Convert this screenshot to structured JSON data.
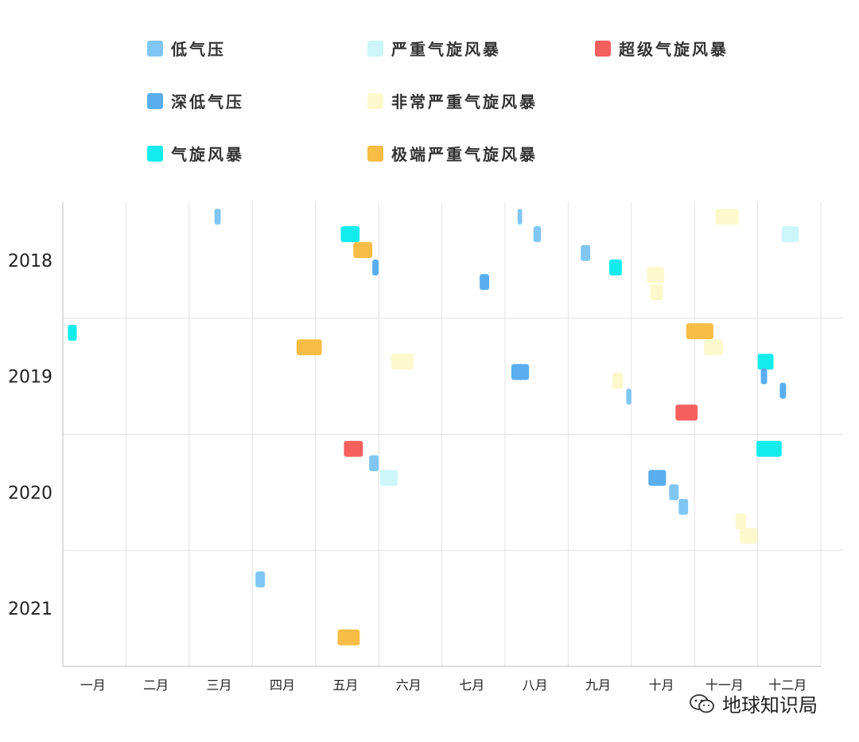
{
  "colors": {
    "low_pressure": "#7fc6f3",
    "deep_low_pressure": "#5aaef0",
    "cyclonic_storm": "#12ecec",
    "severe_cyclonic_storm": "#ccf6fa",
    "very_severe_cyclonic_storm": "#fdf9cc",
    "extremely_severe_cyclonic_storm": "#f7bd45",
    "super_cyclonic_storm": "#f5605f",
    "grid": "#e2e2e2",
    "axis": "#bdbdbd"
  },
  "watermark": {
    "icon": "wechat-icon",
    "text": "地球知识局"
  },
  "chart_data": {
    "type": "scatter",
    "title": "",
    "legend": {
      "placement": "top",
      "entries": [
        {
          "key": "low_pressure",
          "label": "低气压"
        },
        {
          "key": "severe_cyclonic_storm",
          "label": "严重气旋风暴"
        },
        {
          "key": "super_cyclonic_storm",
          "label": "超级气旋风暴"
        },
        {
          "key": "deep_low_pressure",
          "label": "深低气压"
        },
        {
          "key": "very_severe_cyclonic_storm",
          "label": "非常严重气旋风暴"
        },
        {
          "key": "cyclonic_storm",
          "label": "气旋风暴"
        },
        {
          "key": "extremely_severe_cyclonic_storm",
          "label": "极端严重气旋风暴"
        }
      ]
    },
    "x_axis": {
      "unit": "month",
      "range": [
        1,
        13
      ],
      "labels": [
        "一月",
        "二月",
        "三月",
        "四月",
        "五月",
        "六月",
        "七月",
        "八月",
        "九月",
        "十月",
        "十一月",
        "十二月"
      ]
    },
    "y_axis": {
      "categories": [
        "2018",
        "2019",
        "2020",
        "2021"
      ]
    },
    "grid": true,
    "storms": [
      {
        "year": "2018",
        "start": 3.4,
        "end": 3.5,
        "row": 1.0,
        "category": "low_pressure"
      },
      {
        "year": "2018",
        "start": 5.4,
        "end": 5.7,
        "row": 2.2,
        "category": "cyclonic_storm"
      },
      {
        "year": "2018",
        "start": 5.6,
        "end": 5.9,
        "row": 3.3,
        "category": "extremely_severe_cyclonic_storm"
      },
      {
        "year": "2018",
        "start": 5.9,
        "end": 6.0,
        "row": 4.5,
        "category": "deep_low_pressure"
      },
      {
        "year": "2018",
        "start": 7.6,
        "end": 7.75,
        "row": 5.5,
        "category": "deep_low_pressure"
      },
      {
        "year": "2018",
        "start": 8.2,
        "end": 8.27,
        "row": 1.0,
        "category": "low_pressure"
      },
      {
        "year": "2018",
        "start": 8.45,
        "end": 8.57,
        "row": 2.2,
        "category": "low_pressure"
      },
      {
        "year": "2018",
        "start": 9.2,
        "end": 9.35,
        "row": 3.5,
        "category": "low_pressure"
      },
      {
        "year": "2018",
        "start": 9.65,
        "end": 9.85,
        "row": 4.5,
        "category": "cyclonic_storm"
      },
      {
        "year": "2018",
        "start": 10.25,
        "end": 10.52,
        "row": 5.0,
        "category": "very_severe_cyclonic_storm"
      },
      {
        "year": "2018",
        "start": 10.3,
        "end": 10.5,
        "row": 6.2,
        "category": "very_severe_cyclonic_storm"
      },
      {
        "year": "2018",
        "start": 11.33,
        "end": 11.7,
        "row": 1.0,
        "category": "very_severe_cyclonic_storm"
      },
      {
        "year": "2018",
        "start": 12.38,
        "end": 12.65,
        "row": 2.2,
        "category": "severe_cyclonic_storm"
      },
      {
        "year": "2019",
        "start": 1.08,
        "end": 1.22,
        "row": 1.0,
        "category": "cyclonic_storm"
      },
      {
        "year": "2019",
        "start": 4.7,
        "end": 5.1,
        "row": 2.0,
        "category": "extremely_severe_cyclonic_storm"
      },
      {
        "year": "2019",
        "start": 6.2,
        "end": 6.55,
        "row": 3.0,
        "category": "very_severe_cyclonic_storm"
      },
      {
        "year": "2019",
        "start": 8.1,
        "end": 8.38,
        "row": 3.7,
        "category": "deep_low_pressure"
      },
      {
        "year": "2019",
        "start": 9.7,
        "end": 9.87,
        "row": 4.3,
        "category": "very_severe_cyclonic_storm"
      },
      {
        "year": "2019",
        "start": 9.92,
        "end": 10.0,
        "row": 5.4,
        "category": "low_pressure"
      },
      {
        "year": "2019",
        "start": 10.7,
        "end": 11.05,
        "row": 6.5,
        "category": "super_cyclonic_storm"
      },
      {
        "year": "2019",
        "start": 10.87,
        "end": 11.3,
        "row": 0.9,
        "category": "extremely_severe_cyclonic_storm"
      },
      {
        "year": "2019",
        "start": 11.15,
        "end": 11.45,
        "row": 2.0,
        "category": "very_severe_cyclonic_storm"
      },
      {
        "year": "2019",
        "start": 12.0,
        "end": 12.25,
        "row": 3.0,
        "category": "cyclonic_storm"
      },
      {
        "year": "2019",
        "start": 12.05,
        "end": 12.15,
        "row": 4.0,
        "category": "deep_low_pressure"
      },
      {
        "year": "2019",
        "start": 12.35,
        "end": 12.45,
        "row": 5.0,
        "category": "deep_low_pressure"
      },
      {
        "year": "2020",
        "start": 5.45,
        "end": 5.75,
        "row": 1.0,
        "category": "super_cyclonic_storm"
      },
      {
        "year": "2020",
        "start": 5.85,
        "end": 6.0,
        "row": 2.0,
        "category": "low_pressure"
      },
      {
        "year": "2020",
        "start": 6.02,
        "end": 6.3,
        "row": 3.0,
        "category": "severe_cyclonic_storm"
      },
      {
        "year": "2020",
        "start": 10.27,
        "end": 10.55,
        "row": 3.0,
        "category": "deep_low_pressure"
      },
      {
        "year": "2020",
        "start": 10.6,
        "end": 10.75,
        "row": 4.0,
        "category": "low_pressure"
      },
      {
        "year": "2020",
        "start": 10.75,
        "end": 10.9,
        "row": 5.0,
        "category": "low_pressure"
      },
      {
        "year": "2020",
        "start": 11.65,
        "end": 11.82,
        "row": 6.0,
        "category": "very_severe_cyclonic_storm"
      },
      {
        "year": "2020",
        "start": 11.72,
        "end": 12.0,
        "row": 7.0,
        "category": "very_severe_cyclonic_storm"
      },
      {
        "year": "2020",
        "start": 11.98,
        "end": 12.38,
        "row": 1.0,
        "category": "cyclonic_storm"
      },
      {
        "year": "2021",
        "start": 4.05,
        "end": 4.2,
        "row": 2.0,
        "category": "low_pressure"
      },
      {
        "year": "2021",
        "start": 5.35,
        "end": 5.7,
        "row": 6.0,
        "category": "extremely_severe_cyclonic_storm"
      }
    ]
  }
}
